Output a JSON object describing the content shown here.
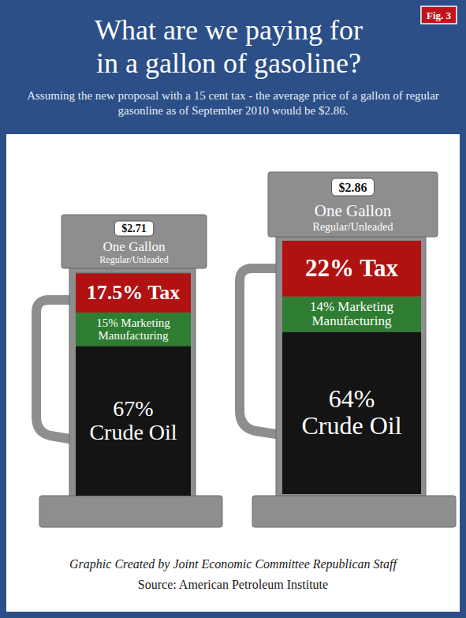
{
  "chart_data": {
    "type": "bar",
    "title": "What are we paying for in a gallon of gasoline?",
    "subtitle": "Assuming the new proposal with a 15 cent tax - the average price of a gallon of  regular gasonline as of September 2010 would be $2.86.",
    "figure_label": "Fig. 3",
    "categories": [
      "$2.71",
      "$2.86"
    ],
    "unit_label": "One Gallon",
    "unit_sublabel": "Regular/Unleaded",
    "series": [
      {
        "color": "#141414",
        "values": [
          67,
          64
        ],
        "value_labels": [
          "67% Crude Oil",
          "64% Crude Oil"
        ]
      },
      {
        "color": "#2f7d32",
        "values": [
          15,
          14
        ],
        "value_labels": [
          "15% Marketing Manufacturing",
          "14% Marketing Manufacturing"
        ]
      },
      {
        "color": "#b01212",
        "values": [
          17.5,
          22
        ],
        "value_labels": [
          "17.5% Tax",
          "22% Tax"
        ]
      }
    ],
    "ylim": [
      0,
      100
    ],
    "stacked": true,
    "data_labels": true,
    "tick_labels": false,
    "credit": "Graphic Created by Joint Economic Committee Republican Staff",
    "source": "Source: American Petroleum Institute"
  }
}
